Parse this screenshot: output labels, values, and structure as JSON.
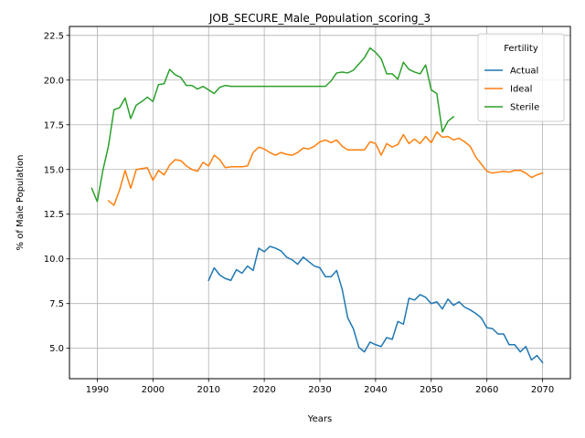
{
  "chart_data": {
    "type": "line",
    "title": "JOB_SECURE_Male_Population_scoring_3",
    "xlabel": "Years",
    "ylabel": "% of Male Population",
    "xlim": [
      1985,
      2075
    ],
    "ylim": [
      3.3,
      23.0
    ],
    "xticks": [
      1990,
      2000,
      2010,
      2020,
      2030,
      2040,
      2050,
      2060,
      2070
    ],
    "yticks": [
      5.0,
      7.5,
      10.0,
      12.5,
      15.0,
      17.5,
      20.0,
      22.5
    ],
    "xtick_labels": [
      "1990",
      "2000",
      "2010",
      "2020",
      "2030",
      "2040",
      "2050",
      "2060",
      "2070"
    ],
    "ytick_labels": [
      "5.0",
      "7.5",
      "10.0",
      "12.5",
      "15.0",
      "17.5",
      "20.0",
      "22.5"
    ],
    "grid": true,
    "legend": {
      "title": "Fertility",
      "placement": "top-right"
    },
    "series": [
      {
        "name": "Actual",
        "color": "#1f77b4",
        "x": [
          2010,
          2011,
          2012,
          2013,
          2014,
          2015,
          2016,
          2017,
          2018,
          2019,
          2020,
          2021,
          2022,
          2023,
          2024,
          2025,
          2026,
          2027,
          2028,
          2029,
          2030,
          2031,
          2032,
          2033,
          2034,
          2035,
          2036,
          2037,
          2038,
          2039,
          2040,
          2041,
          2042,
          2043,
          2044,
          2045,
          2046,
          2047,
          2048,
          2049,
          2050,
          2051,
          2052,
          2053,
          2054,
          2055,
          2056,
          2057,
          2058,
          2059,
          2060,
          2061,
          2062,
          2063,
          2064,
          2065,
          2066,
          2067,
          2068,
          2069,
          2070
        ],
        "y": [
          8.8,
          9.5,
          9.1,
          8.9,
          8.8,
          9.4,
          9.2,
          9.6,
          9.35,
          10.6,
          10.4,
          10.7,
          10.6,
          10.45,
          10.1,
          9.95,
          9.7,
          10.1,
          9.85,
          9.6,
          9.5,
          9.0,
          9.0,
          9.35,
          8.3,
          6.7,
          6.1,
          5.05,
          4.8,
          5.35,
          5.2,
          5.1,
          5.6,
          5.5,
          6.5,
          6.35,
          7.8,
          7.7,
          8.0,
          7.85,
          7.5,
          7.6,
          7.2,
          7.75,
          7.4,
          7.6,
          7.3,
          7.15,
          6.95,
          6.7,
          6.15,
          6.1,
          5.8,
          5.8,
          5.2,
          5.2,
          4.8,
          5.1,
          4.35,
          4.6,
          4.2
        ]
      },
      {
        "name": "Ideal",
        "color": "#ff7f0e",
        "x": [
          1992,
          1993,
          1994,
          1995,
          1996,
          1997,
          1998,
          1999,
          2000,
          2001,
          2002,
          2003,
          2004,
          2005,
          2006,
          2007,
          2008,
          2009,
          2010,
          2011,
          2012,
          2013,
          2014,
          2015,
          2016,
          2017,
          2018,
          2019,
          2020,
          2021,
          2022,
          2023,
          2024,
          2025,
          2026,
          2027,
          2028,
          2029,
          2030,
          2031,
          2032,
          2033,
          2034,
          2035,
          2036,
          2037,
          2038,
          2039,
          2040,
          2041,
          2042,
          2043,
          2044,
          2045,
          2046,
          2047,
          2048,
          2049,
          2050,
          2051,
          2052,
          2053,
          2054,
          2055,
          2056,
          2057,
          2058,
          2059,
          2060,
          2061,
          2062,
          2063,
          2064,
          2065,
          2066,
          2067,
          2068,
          2069,
          2070
        ],
        "y": [
          13.25,
          13.0,
          13.85,
          14.95,
          13.95,
          15.0,
          15.05,
          15.1,
          14.4,
          14.95,
          14.7,
          15.25,
          15.55,
          15.5,
          15.2,
          15.0,
          14.9,
          15.4,
          15.2,
          15.8,
          15.55,
          15.1,
          15.15,
          15.15,
          15.15,
          15.2,
          15.95,
          16.25,
          16.15,
          15.95,
          15.8,
          15.95,
          15.85,
          15.8,
          15.95,
          16.2,
          16.15,
          16.3,
          16.55,
          16.65,
          16.5,
          16.65,
          16.3,
          16.1,
          16.1,
          16.1,
          16.1,
          16.55,
          16.45,
          15.8,
          16.45,
          16.25,
          16.4,
          16.95,
          16.45,
          16.7,
          16.45,
          16.85,
          16.5,
          17.1,
          16.8,
          16.85,
          16.65,
          16.75,
          16.55,
          16.3,
          15.7,
          15.3,
          14.9,
          14.8,
          14.85,
          14.9,
          14.85,
          14.95,
          14.95,
          14.8,
          14.55,
          14.7,
          14.8
        ]
      },
      {
        "name": "Sterile",
        "color": "#2ca02c",
        "x": [
          1989,
          1990,
          1991,
          1992,
          1993,
          1994,
          1995,
          1996,
          1997,
          1998,
          1999,
          2000,
          2001,
          2002,
          2003,
          2004,
          2005,
          2006,
          2007,
          2008,
          2009,
          2010,
          2011,
          2012,
          2013,
          2014,
          2015,
          2016,
          2017,
          2018,
          2019,
          2020,
          2021,
          2022,
          2023,
          2024,
          2025,
          2026,
          2027,
          2028,
          2029,
          2030,
          2031,
          2032,
          2033,
          2034,
          2035,
          2036,
          2037,
          2038,
          2039,
          2040,
          2041,
          2042,
          2043,
          2044,
          2045,
          2046,
          2047,
          2048,
          2049,
          2050,
          2051,
          2052,
          2053,
          2054
        ],
        "y": [
          13.95,
          13.2,
          14.95,
          16.3,
          18.35,
          18.45,
          19.0,
          17.85,
          18.6,
          18.8,
          19.05,
          18.8,
          19.75,
          19.8,
          20.6,
          20.3,
          20.15,
          19.7,
          19.7,
          19.5,
          19.65,
          19.45,
          19.25,
          19.6,
          19.7,
          19.65,
          19.65,
          19.65,
          19.65,
          19.65,
          19.65,
          19.65,
          19.65,
          19.65,
          19.65,
          19.65,
          19.65,
          19.65,
          19.65,
          19.65,
          19.65,
          19.65,
          19.65,
          19.95,
          20.4,
          20.45,
          20.4,
          20.55,
          20.9,
          21.25,
          21.8,
          21.55,
          21.2,
          20.35,
          20.35,
          20.05,
          21.0,
          20.6,
          20.45,
          20.35,
          20.85,
          19.45,
          19.25,
          17.1,
          17.7,
          17.95
        ]
      }
    ]
  }
}
